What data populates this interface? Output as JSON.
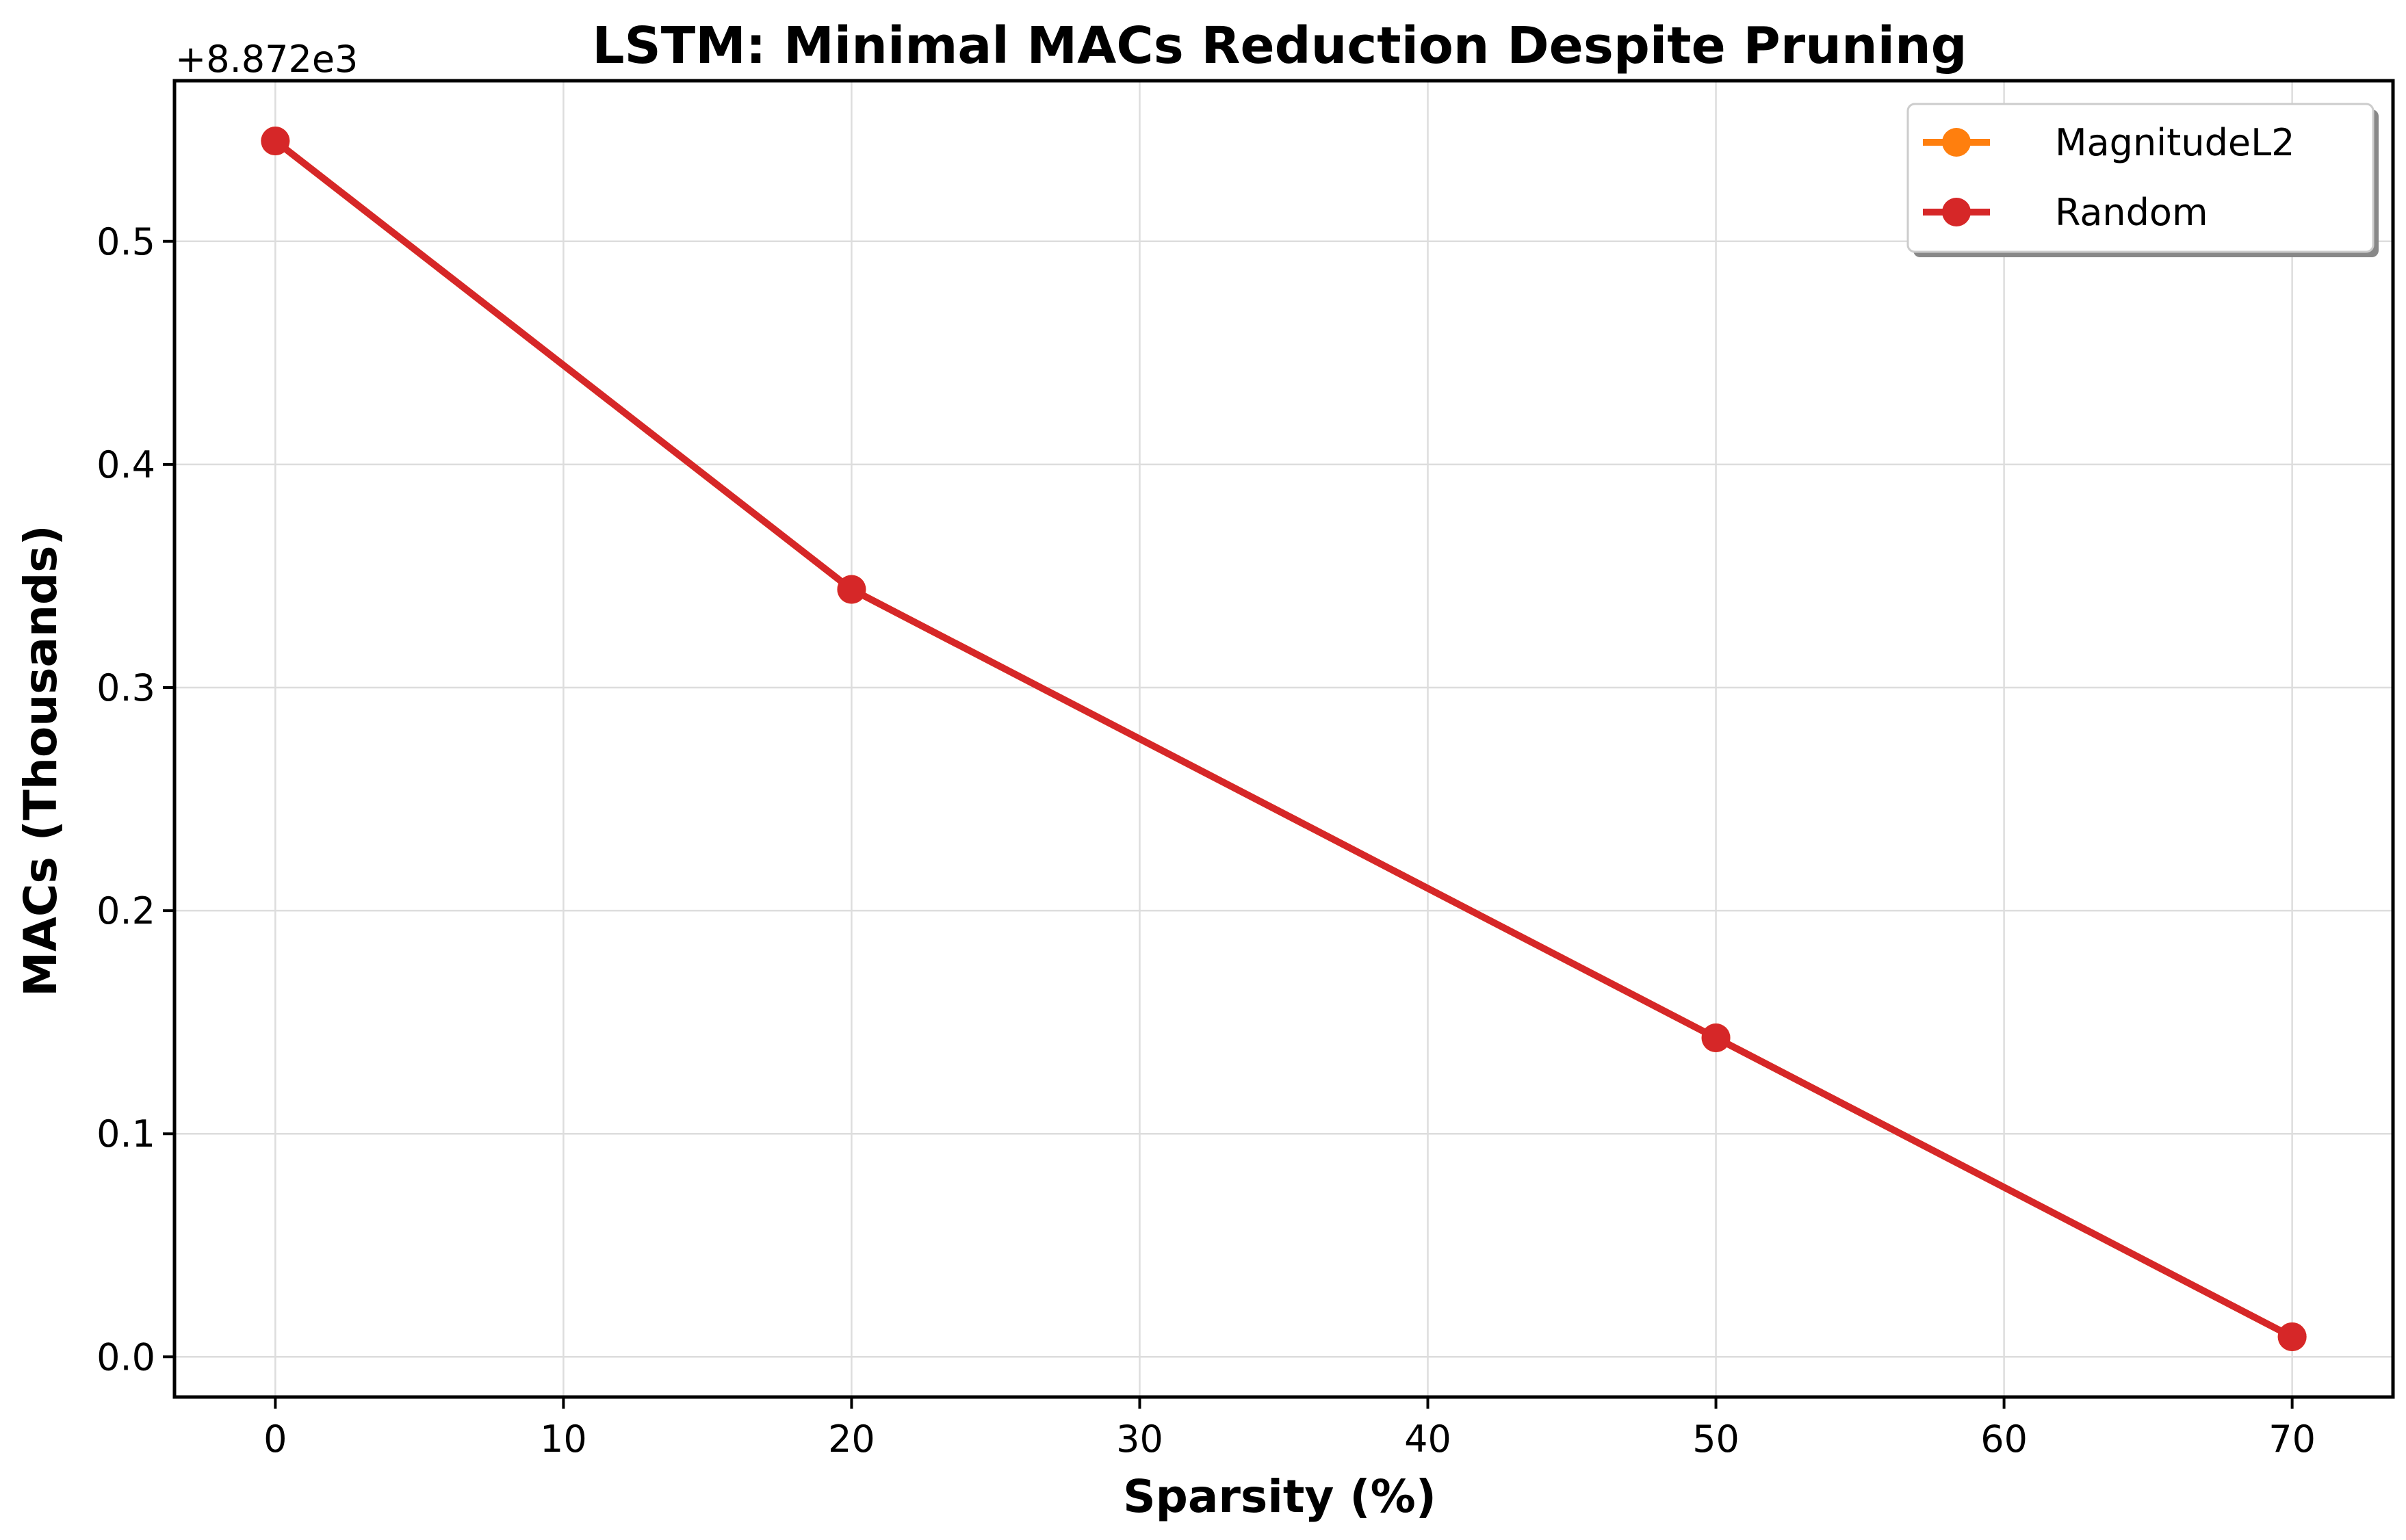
{
  "chart_data": {
    "type": "line",
    "title": "LSTM: Minimal MACs Reduction Despite Pruning",
    "xlabel": "Sparsity (%)",
    "ylabel": "MACs (Thousands)",
    "y_offset_label": "+8.872e3",
    "xlim": [
      -3.5,
      73.5
    ],
    "ylim": [
      -0.018,
      0.572
    ],
    "xticks": [
      0,
      10,
      20,
      30,
      40,
      50,
      60,
      70
    ],
    "yticks": [
      0.0,
      0.1,
      0.2,
      0.3,
      0.4,
      0.5
    ],
    "ytick_labels": [
      "0.0",
      "0.1",
      "0.2",
      "0.3",
      "0.4",
      "0.5"
    ],
    "grid": true,
    "legend_position": "top-right",
    "series": [
      {
        "name": "MagnitudeL2",
        "color": "#ff7f0e",
        "x": [
          0,
          20,
          50,
          70
        ],
        "y": [
          0.545,
          0.344,
          0.143,
          0.009
        ]
      },
      {
        "name": "Random",
        "color": "#d62728",
        "x": [
          0,
          20,
          50,
          70
        ],
        "y": [
          0.545,
          0.344,
          0.143,
          0.009
        ]
      }
    ]
  }
}
